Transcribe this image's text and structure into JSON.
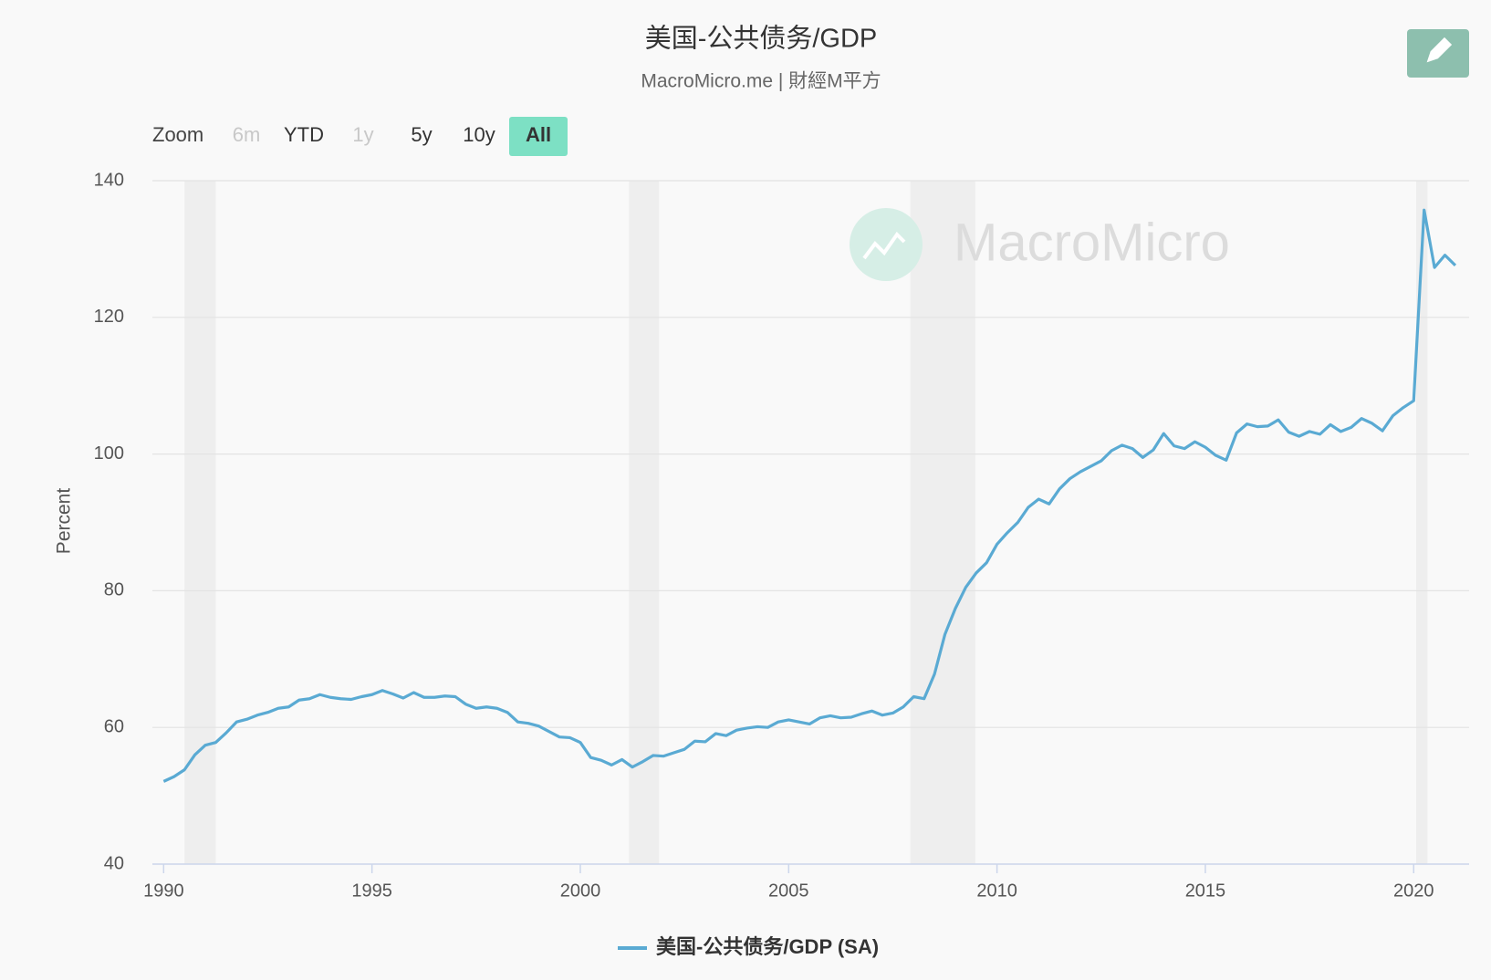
{
  "chart_data": {
    "type": "line",
    "title": "美国-公共债务/GDP",
    "subtitle": "MacroMicro.me | 財經M平方",
    "watermark": "MacroMicro",
    "zoom": {
      "label": "Zoom",
      "buttons": [
        "6m",
        "YTD",
        "1y",
        "5y",
        "10y",
        "All"
      ],
      "disabled": [
        "6m",
        "1y"
      ],
      "active": "All",
      "active_color": "#7de0c4"
    },
    "ylabel": "Percent",
    "xlim": [
      1989.73,
      2021.33
    ],
    "xticks": [
      1990,
      1995,
      2000,
      2005,
      2010,
      2015,
      2020
    ],
    "ylim": [
      40,
      140
    ],
    "yticks": [
      40,
      60,
      80,
      100,
      120,
      140
    ],
    "grid": true,
    "recessions": [
      [
        1990.5,
        1991.25
      ],
      [
        2001.17,
        2001.89
      ],
      [
        2007.92,
        2009.48
      ],
      [
        2020.06,
        2020.33
      ]
    ],
    "recession_color": "#eeeeee",
    "legend": "bottom",
    "x": [
      1990,
      1990.25,
      1990.5,
      1990.75,
      1991,
      1991.25,
      1991.5,
      1991.75,
      1992,
      1992.25,
      1992.5,
      1992.75,
      1993,
      1993.25,
      1993.5,
      1993.75,
      1994,
      1994.25,
      1994.5,
      1994.75,
      1995,
      1995.25,
      1995.5,
      1995.75,
      1996,
      1996.25,
      1996.5,
      1996.75,
      1997,
      1997.25,
      1997.5,
      1997.75,
      1998,
      1998.25,
      1998.5,
      1998.75,
      1999,
      1999.25,
      1999.5,
      1999.75,
      2000,
      2000.25,
      2000.5,
      2000.75,
      2001,
      2001.25,
      2001.5,
      2001.75,
      2002,
      2002.25,
      2002.5,
      2002.75,
      2003,
      2003.25,
      2003.5,
      2003.75,
      2004,
      2004.25,
      2004.5,
      2004.75,
      2005,
      2005.25,
      2005.5,
      2005.75,
      2006,
      2006.25,
      2006.5,
      2006.75,
      2007,
      2007.25,
      2007.5,
      2007.75,
      2008,
      2008.25,
      2008.5,
      2008.75,
      2009,
      2009.25,
      2009.5,
      2009.75,
      2010,
      2010.25,
      2010.5,
      2010.75,
      2011,
      2011.25,
      2011.5,
      2011.75,
      2012,
      2012.25,
      2012.5,
      2012.75,
      2013,
      2013.25,
      2013.5,
      2013.75,
      2014,
      2014.25,
      2014.5,
      2014.75,
      2015,
      2015.25,
      2015.5,
      2015.75,
      2016,
      2016.25,
      2016.5,
      2016.75,
      2017,
      2017.25,
      2017.5,
      2017.75,
      2018,
      2018.25,
      2018.5,
      2018.75,
      2019,
      2019.25,
      2019.5,
      2019.75,
      2020,
      2020.25,
      2020.5,
      2020.75,
      2021
    ],
    "series": [
      {
        "name": "美国-公共债务/GDP (SA)",
        "color": "#5aaad3",
        "values": [
          52.1,
          52.8,
          53.8,
          56.0,
          57.4,
          57.8,
          59.2,
          60.8,
          61.2,
          61.8,
          62.2,
          62.8,
          63.0,
          64.0,
          64.2,
          64.8,
          64.4,
          64.2,
          64.1,
          64.5,
          64.8,
          65.4,
          64.9,
          64.3,
          65.1,
          64.4,
          64.4,
          64.6,
          64.5,
          63.4,
          62.8,
          63.0,
          62.8,
          62.2,
          60.8,
          60.6,
          60.2,
          59.4,
          58.6,
          58.5,
          57.8,
          55.6,
          55.2,
          54.5,
          55.3,
          54.2,
          55.0,
          55.9,
          55.8,
          56.3,
          56.8,
          58.0,
          57.9,
          59.1,
          58.8,
          59.6,
          59.9,
          60.1,
          60.0,
          60.8,
          61.1,
          60.8,
          60.5,
          61.4,
          61.7,
          61.4,
          61.5,
          62.0,
          62.4,
          61.8,
          62.1,
          63.0,
          64.5,
          64.2,
          67.8,
          73.6,
          77.4,
          80.5,
          82.6,
          84.1,
          86.8,
          88.5,
          90.0,
          92.2,
          93.4,
          92.7,
          94.9,
          96.4,
          97.4,
          98.2,
          99.0,
          100.5,
          101.3,
          100.8,
          99.5,
          100.6,
          103.0,
          101.2,
          100.8,
          101.8,
          101.0,
          99.8,
          99.1,
          103.1,
          104.4,
          104.0,
          104.1,
          105.0,
          103.2,
          102.6,
          103.3,
          102.9,
          104.3,
          103.3,
          103.9,
          105.2,
          104.5,
          103.4,
          105.6,
          106.8,
          107.8,
          135.7,
          127.3,
          129.1,
          127.6
        ]
      }
    ]
  }
}
